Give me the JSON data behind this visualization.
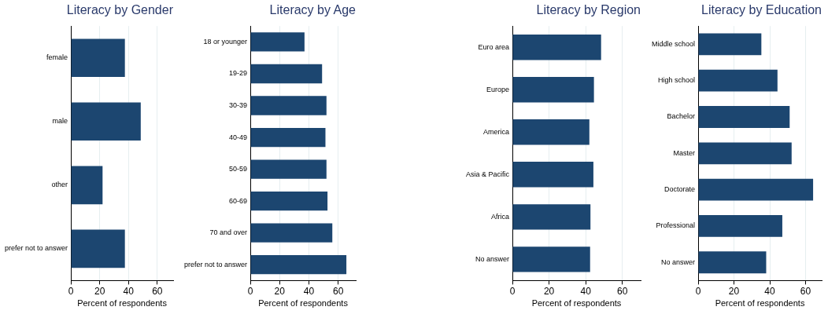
{
  "chart_data": [
    {
      "type": "bar",
      "title": "Literacy by Gender",
      "xlabel": "Percent of respondents",
      "orientation": "horizontal",
      "categories": [
        "female",
        "male",
        "other",
        "prefer not to answer"
      ],
      "values": [
        37.5,
        48.5,
        22,
        37.5
      ],
      "color": "#1c4670",
      "xlim": [
        0,
        71
      ],
      "xticks": [
        0,
        20,
        40,
        60
      ],
      "grid": "x",
      "legend": false
    },
    {
      "type": "bar",
      "title": "Literacy by Age",
      "xlabel": "Percent of respondents",
      "orientation": "horizontal",
      "categories": [
        "18 or younger",
        "19-29",
        "30-39",
        "40-49",
        "50-59",
        "60-69",
        "70 and over",
        "prefer not to answer"
      ],
      "values": [
        37,
        49,
        52,
        51.3,
        52,
        52.7,
        56,
        65.6
      ],
      "color": "#1c4670",
      "xlim": [
        0,
        72
      ],
      "xticks": [
        0,
        20,
        40,
        60
      ],
      "grid": "x",
      "legend": false
    },
    {
      "type": "bar",
      "title": "Literacy by Region",
      "xlabel": "Percent of respondents",
      "orientation": "horizontal",
      "categories": [
        "Euro area",
        "Europe",
        "America",
        "Asia & Pacific",
        "Africa",
        "No answer"
      ],
      "values": [
        48.4,
        44.5,
        42,
        44.2,
        42.6,
        42.4
      ],
      "color": "#1c4670",
      "xlim": [
        0,
        70
      ],
      "xticks": [
        0,
        20,
        40,
        60
      ],
      "grid": "x",
      "legend": false
    },
    {
      "type": "bar",
      "title": "Literacy by Education",
      "xlabel": "Percent of respondents",
      "orientation": "horizontal",
      "categories": [
        "Middle school",
        "High school",
        "Bachelor",
        "Master",
        "Doctorate",
        "Professional",
        "No answer"
      ],
      "values": [
        35.3,
        44.3,
        51.1,
        52.2,
        64.2,
        47,
        38
      ],
      "color": "#1c4670",
      "xlim": [
        0,
        69
      ],
      "xticks": [
        0,
        20,
        40,
        60
      ],
      "grid": "x",
      "legend": false
    }
  ]
}
